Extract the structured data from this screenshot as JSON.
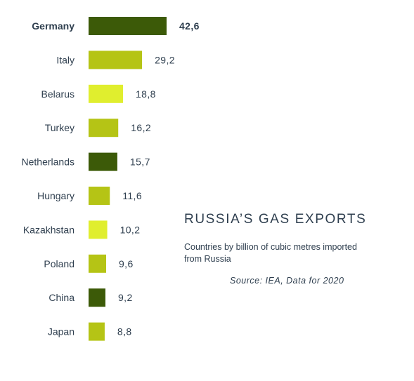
{
  "chart_data": {
    "type": "bar",
    "orientation": "horizontal",
    "title": "RUSSIA’S GAS EXPORTS",
    "subtitle": "Countries by billion of cubic metres imported from Russia",
    "source": "Source: IEA, Data for 2020",
    "xlabel": "",
    "ylabel": "",
    "grid": false,
    "legend": "none",
    "xlim": [
      0,
      42.6
    ],
    "categories": [
      "Germany",
      "Italy",
      "Belarus",
      "Turkey",
      "Netherlands",
      "Hungary",
      "Kazakhstan",
      "Poland",
      "China",
      "Japan"
    ],
    "values": [
      42.6,
      29.2,
      18.8,
      16.2,
      15.7,
      11.6,
      10.2,
      9.6,
      9.2,
      8.8
    ],
    "value_labels": [
      "42,6",
      "29,2",
      "18,8",
      "16,2",
      "15,7",
      "11,6",
      "10,2",
      "9,6",
      "9,2",
      "8,8"
    ],
    "bar_colors": [
      "#3c5a08",
      "#b5c415",
      "#e0ee2e",
      "#b5c415",
      "#3c5a08",
      "#b5c415",
      "#e0ee2e",
      "#b5c415",
      "#3c5a08",
      "#b5c415"
    ],
    "highlight_category": "Germany"
  },
  "colors": {
    "text": "#2f3f4f",
    "dark_green": "#3c5a08",
    "mid_green": "#b5c415",
    "light_green": "#e0ee2e",
    "background": "#ffffff"
  }
}
